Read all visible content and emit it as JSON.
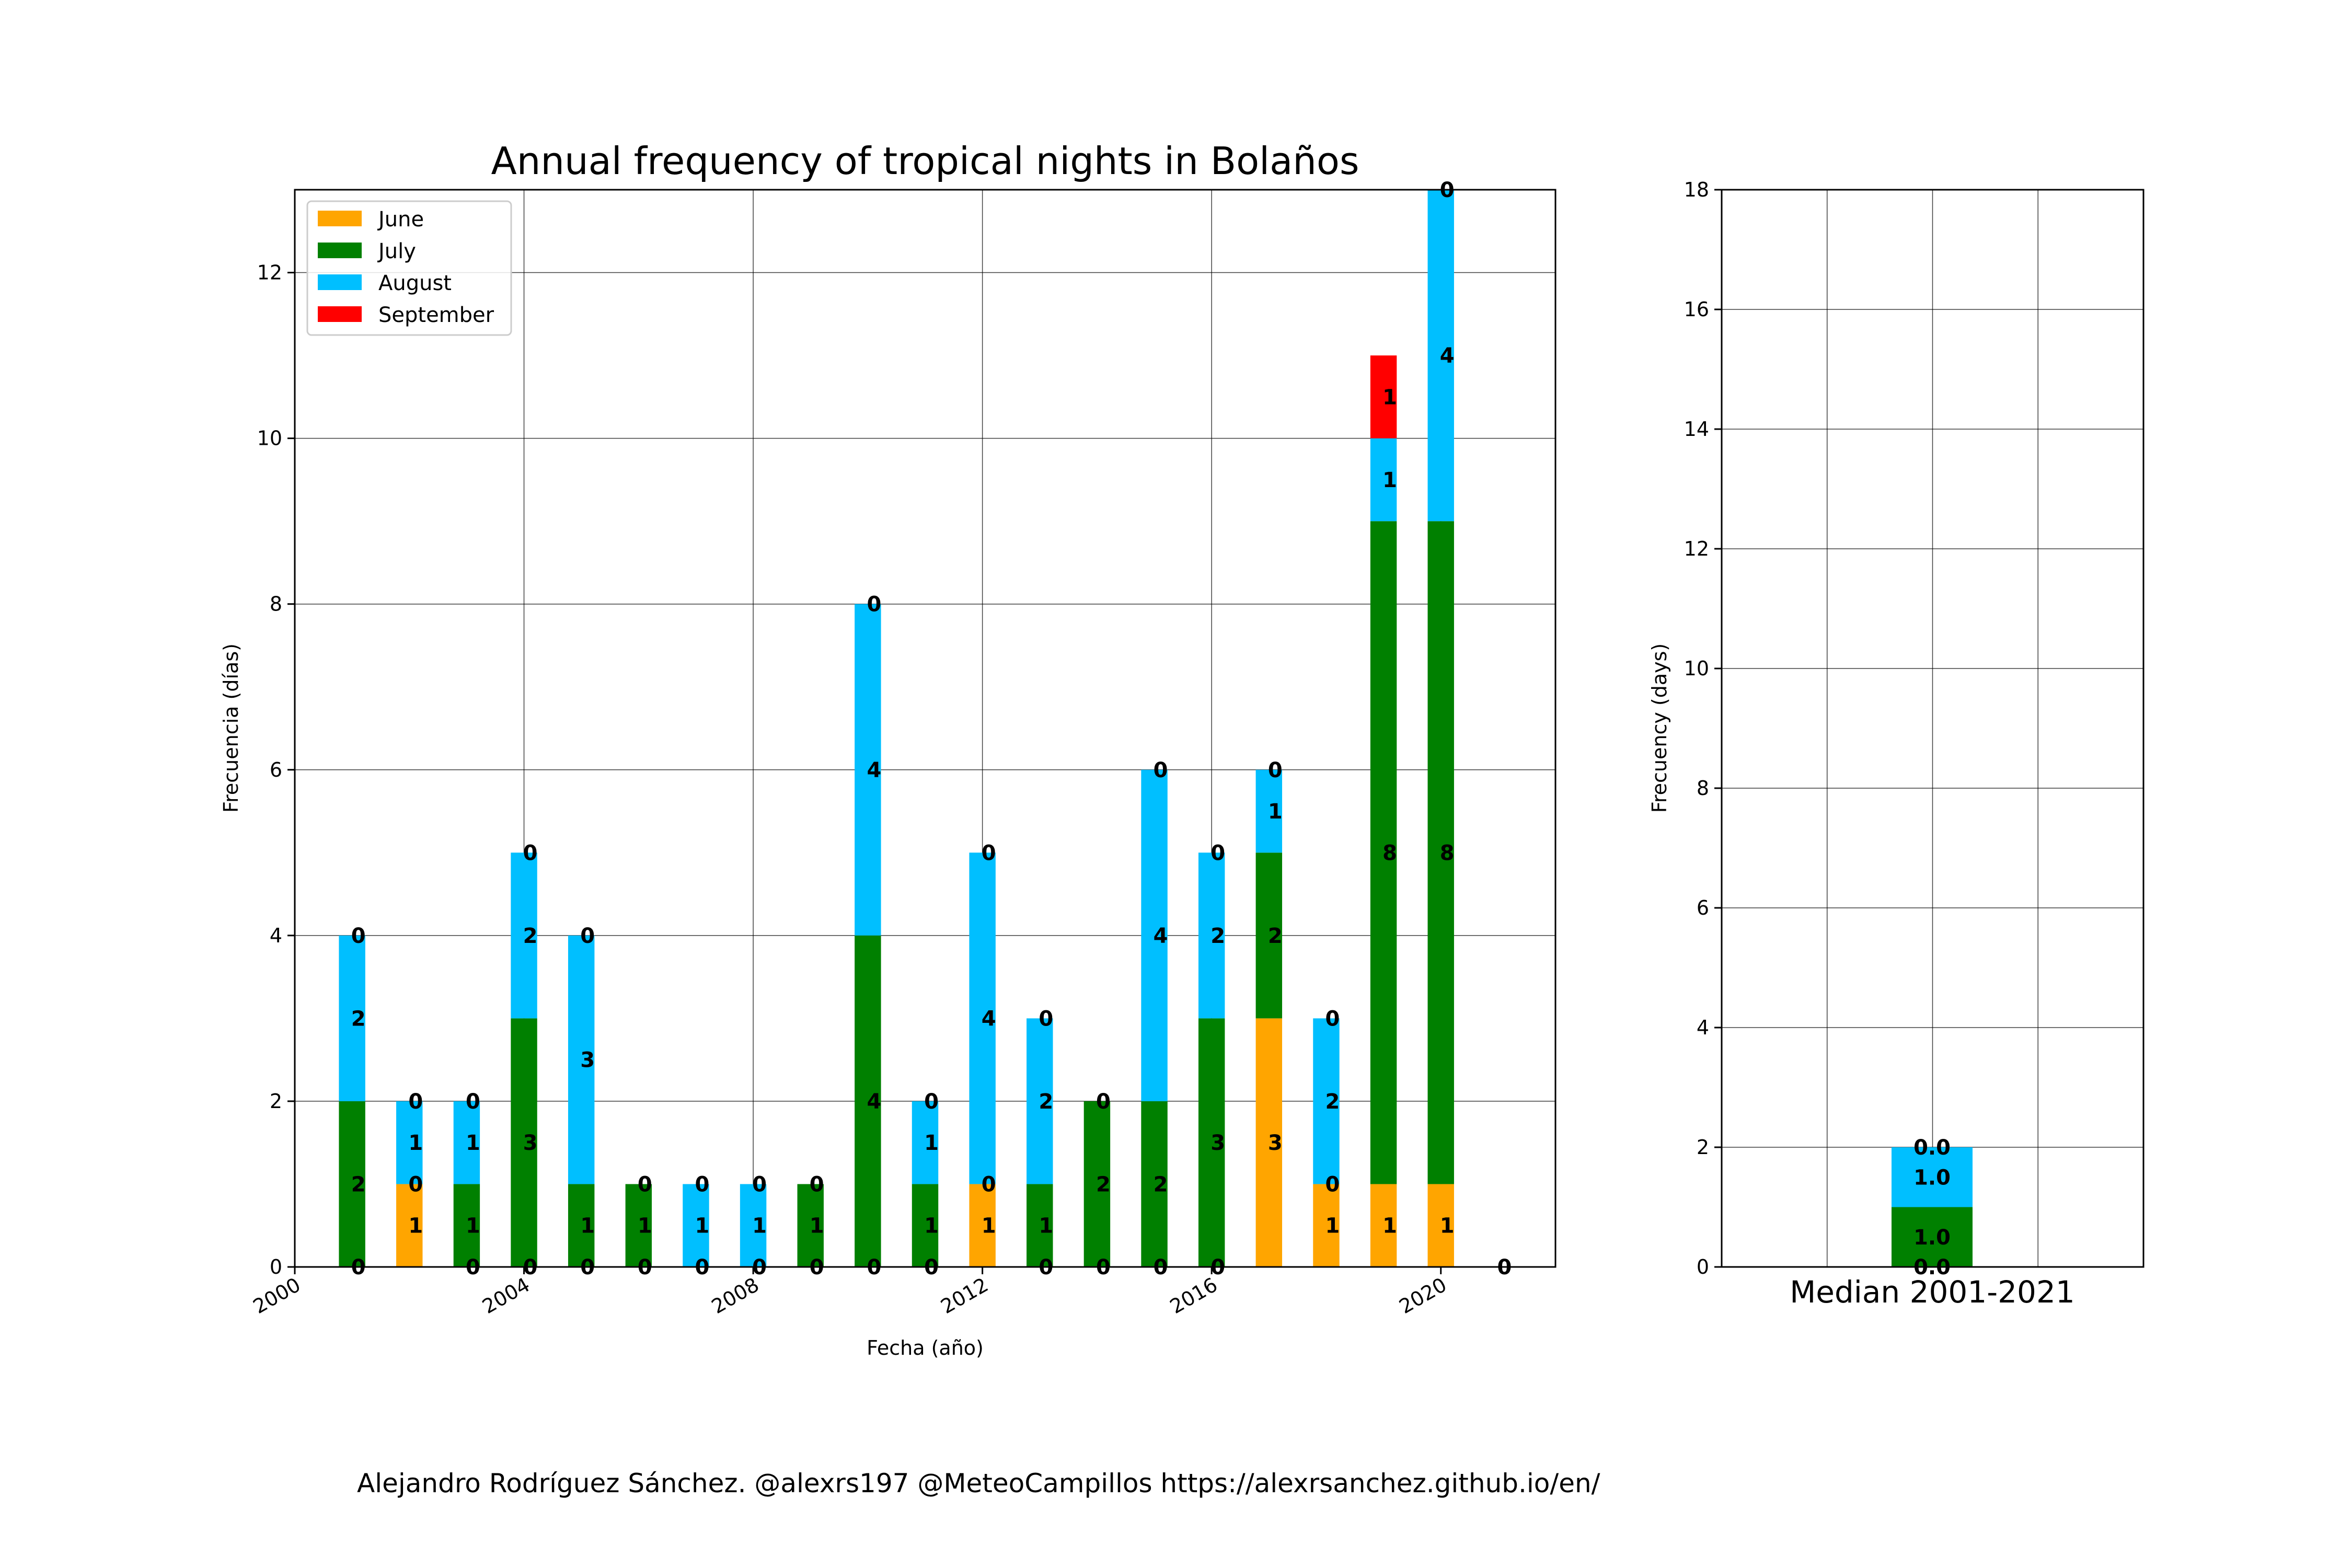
{
  "colors": {
    "june": "#ffa500",
    "july": "#008000",
    "august": "#00bfff",
    "september": "#ff0000"
  },
  "footer": "Alejandro Rodríguez Sánchez. @alexrs197 @MeteoCampillos   https://alexrsanchez.github.io/en/",
  "chart_data": [
    {
      "type": "bar",
      "stacked": true,
      "title": "Annual frequency of tropical nights in Bolaños",
      "xlabel": "Fecha (año)",
      "ylabel": "Frecuencia (días)",
      "xlim": [
        2000,
        2022
      ],
      "ylim": [
        0,
        13
      ],
      "x_ticks": [
        2000,
        2004,
        2008,
        2012,
        2016,
        2020
      ],
      "y_ticks": [
        0,
        2,
        4,
        6,
        8,
        10,
        12
      ],
      "grid": true,
      "legend": {
        "placement": "top-left",
        "entries": [
          "June",
          "July",
          "August",
          "September"
        ]
      },
      "x": [
        2001,
        2002,
        2003,
        2004,
        2005,
        2006,
        2007,
        2008,
        2009,
        2010,
        2011,
        2012,
        2013,
        2014,
        2015,
        2016,
        2017,
        2018,
        2019,
        2020,
        2021
      ],
      "series": [
        {
          "name": "June",
          "color": "#ffa500",
          "values": [
            0,
            1,
            0,
            0,
            0,
            0,
            0,
            0,
            0,
            0,
            0,
            1,
            0,
            0,
            0,
            0,
            3,
            1,
            1,
            1,
            0
          ]
        },
        {
          "name": "July",
          "color": "#008000",
          "values": [
            2,
            0,
            1,
            3,
            1,
            1,
            0,
            0,
            1,
            4,
            1,
            0,
            1,
            2,
            2,
            3,
            2,
            0,
            8,
            8,
            0
          ]
        },
        {
          "name": "August",
          "color": "#00bfff",
          "values": [
            2,
            1,
            1,
            2,
            3,
            0,
            1,
            1,
            0,
            4,
            1,
            4,
            2,
            0,
            4,
            2,
            1,
            2,
            1,
            4,
            0
          ]
        },
        {
          "name": "September",
          "color": "#ff0000",
          "values": [
            0,
            0,
            0,
            0,
            0,
            0,
            0,
            0,
            0,
            0,
            0,
            0,
            0,
            0,
            0,
            0,
            0,
            0,
            1,
            0,
            0
          ]
        }
      ],
      "segment_labels": [
        [
          "0",
          "2",
          "2",
          "0"
        ],
        [
          "1",
          "0",
          "1",
          "0"
        ],
        [
          "0",
          "1",
          "1",
          "0"
        ],
        [
          "0",
          "3",
          "2",
          "0"
        ],
        [
          "0",
          "1",
          "3",
          "0"
        ],
        [
          "0",
          "1",
          "",
          "0"
        ],
        [
          "0",
          "",
          "1",
          "0"
        ],
        [
          "0",
          "",
          "1",
          "0"
        ],
        [
          "0",
          "1",
          "",
          "0"
        ],
        [
          "0",
          "4",
          "4",
          "0"
        ],
        [
          "0",
          "1",
          "1",
          "0"
        ],
        [
          "1",
          "0",
          "4",
          "0"
        ],
        [
          "0",
          "1",
          "2",
          "0"
        ],
        [
          "0",
          "2",
          "",
          "0"
        ],
        [
          "0",
          "2",
          "4",
          "0"
        ],
        [
          "0",
          "3",
          "2",
          "0"
        ],
        [
          "3",
          "2",
          "1",
          "0"
        ],
        [
          "1",
          "0",
          "2",
          "0"
        ],
        [
          "1",
          "8",
          "1",
          "1"
        ],
        [
          "1",
          "8",
          "4",
          "0"
        ],
        [
          "",
          "",
          "",
          "0"
        ]
      ]
    },
    {
      "type": "bar",
      "stacked": true,
      "xlabel": "Median 2001-2021",
      "ylabel": "Frecuency (days)",
      "ylim": [
        0,
        18
      ],
      "y_ticks": [
        0,
        2,
        4,
        6,
        8,
        10,
        12,
        14,
        16,
        18
      ],
      "grid": true,
      "series": [
        {
          "name": "June",
          "color": "#ffa500",
          "value": 0.0
        },
        {
          "name": "July",
          "color": "#008000",
          "value": 1.0
        },
        {
          "name": "August",
          "color": "#00bfff",
          "value": 1.0
        },
        {
          "name": "September",
          "color": "#ff0000",
          "value": 0.0
        }
      ],
      "segment_labels": [
        "0.0",
        "1.0",
        "1.0",
        "0.0"
      ]
    }
  ]
}
